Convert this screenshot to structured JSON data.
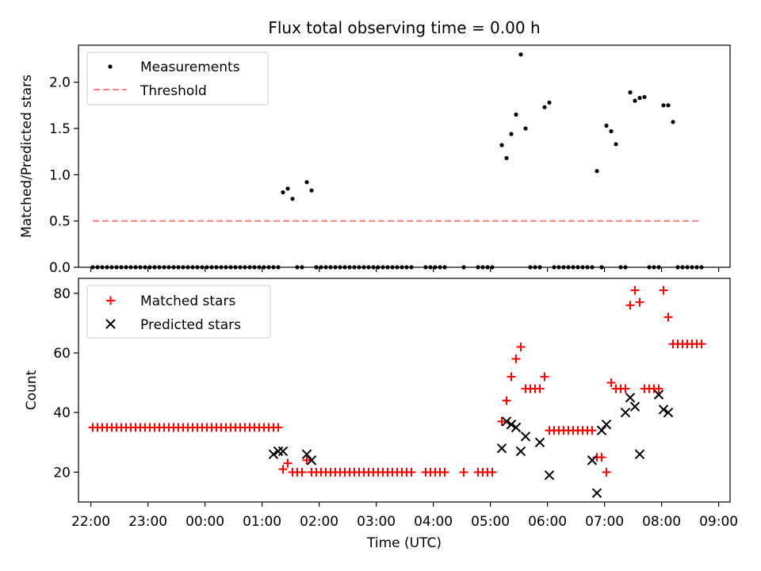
{
  "chart_data": [
    {
      "type": "scatter",
      "title": "Flux total observing time = 0.00 h",
      "ylabel": "Matched/Predicted stars",
      "xlabel": "",
      "ylim": [
        0,
        2.4
      ],
      "xlim": [
        "21:47",
        "09:12"
      ],
      "yticks": [
        "0.0",
        "0.5",
        "1.0",
        "1.5",
        "2.0"
      ],
      "legend_position": "top-left",
      "legend": [
        {
          "label": "Measurements",
          "marker": "dot",
          "color": "#000000"
        },
        {
          "label": "Threshold",
          "marker": "dashed-line",
          "color": "#ff7f7f"
        }
      ],
      "threshold": {
        "value": 0.5,
        "x_start": "22:02",
        "x_end": "08:42"
      },
      "series": [
        {
          "name": "Measurements",
          "x": [
            "22:02",
            "22:07",
            "22:12",
            "22:17",
            "22:22",
            "22:27",
            "22:32",
            "22:37",
            "22:42",
            "22:47",
            "22:52",
            "22:57",
            "23:02",
            "23:07",
            "23:12",
            "23:17",
            "23:22",
            "23:27",
            "23:32",
            "23:37",
            "23:42",
            "23:47",
            "23:52",
            "23:57",
            "00:02",
            "00:07",
            "00:12",
            "00:17",
            "00:22",
            "00:27",
            "00:32",
            "00:37",
            "00:42",
            "00:47",
            "00:52",
            "00:57",
            "01:02",
            "01:07",
            "01:12",
            "01:17",
            "01:22",
            "01:27",
            "01:32",
            "01:37",
            "01:42",
            "01:47",
            "01:52",
            "01:57",
            "02:02",
            "02:07",
            "02:12",
            "02:17",
            "02:22",
            "02:27",
            "02:32",
            "02:37",
            "02:42",
            "02:47",
            "02:52",
            "02:57",
            "03:02",
            "03:07",
            "03:12",
            "03:17",
            "03:22",
            "03:27",
            "03:32",
            "03:37",
            "03:52",
            "03:57",
            "04:02",
            "04:07",
            "04:12",
            "04:32",
            "04:47",
            "04:52",
            "04:57",
            "05:02",
            "05:12",
            "05:17",
            "05:22",
            "05:27",
            "05:32",
            "05:37",
            "05:42",
            "05:47",
            "05:52",
            "05:57",
            "06:02",
            "06:07",
            "06:12",
            "06:17",
            "06:22",
            "06:27",
            "06:32",
            "06:37",
            "06:42",
            "06:47",
            "06:52",
            "06:57",
            "07:02",
            "07:07",
            "07:12",
            "07:17",
            "07:22",
            "07:27",
            "07:32",
            "07:37",
            "07:42",
            "07:47",
            "07:52",
            "07:57",
            "08:02",
            "08:07",
            "08:12",
            "08:17",
            "08:22",
            "08:27",
            "08:32",
            "08:37",
            "08:42"
          ],
          "y": [
            0,
            0,
            0,
            0,
            0,
            0,
            0,
            0,
            0,
            0,
            0,
            0,
            0,
            0,
            0,
            0,
            0,
            0,
            0,
            0,
            0,
            0,
            0,
            0,
            0,
            0,
            0,
            0,
            0,
            0,
            0,
            0,
            0,
            0,
            0,
            0,
            0,
            0,
            0,
            0,
            0.81,
            0.85,
            0.74,
            0,
            0,
            0.92,
            0.83,
            0,
            0,
            0,
            0,
            0,
            0,
            0,
            0,
            0,
            0,
            0,
            0,
            0,
            0,
            0,
            0,
            0,
            0,
            0,
            0,
            0,
            0,
            0,
            0,
            0,
            0,
            0,
            0,
            0,
            0,
            0,
            1.32,
            1.18,
            1.44,
            1.65,
            2.3,
            1.5,
            0,
            0,
            0,
            1.73,
            1.78,
            0,
            0,
            0,
            0,
            0,
            0,
            0,
            0,
            0,
            1.04,
            0,
            1.53,
            1.47,
            1.33,
            0,
            0,
            1.89,
            1.8,
            1.83,
            1.84,
            0,
            0,
            0,
            1.75,
            1.75,
            1.57,
            0,
            0,
            0,
            0,
            0,
            0
          ]
        }
      ]
    },
    {
      "type": "scatter",
      "title": "",
      "ylabel": "Count",
      "xlabel": "Time (UTC)",
      "ylim": [
        10,
        85
      ],
      "xlim": [
        "21:47",
        "09:12"
      ],
      "yticks": [
        "20",
        "40",
        "60",
        "80"
      ],
      "xticks": [
        "22:00",
        "23:00",
        "00:00",
        "01:00",
        "02:00",
        "03:00",
        "04:00",
        "05:00",
        "06:00",
        "07:00",
        "08:00",
        "09:00"
      ],
      "legend_position": "top-left",
      "legend": [
        {
          "label": "Matched stars",
          "marker": "plus",
          "color": "#ff0000"
        },
        {
          "label": "Predicted stars",
          "marker": "x",
          "color": "#000000"
        }
      ],
      "series": [
        {
          "name": "Matched stars",
          "x": [
            "22:02",
            "22:07",
            "22:12",
            "22:17",
            "22:22",
            "22:27",
            "22:32",
            "22:37",
            "22:42",
            "22:47",
            "22:52",
            "22:57",
            "23:02",
            "23:07",
            "23:12",
            "23:17",
            "23:22",
            "23:27",
            "23:32",
            "23:37",
            "23:42",
            "23:47",
            "23:52",
            "23:57",
            "00:02",
            "00:07",
            "00:12",
            "00:17",
            "00:22",
            "00:27",
            "00:32",
            "00:37",
            "00:42",
            "00:47",
            "00:52",
            "00:57",
            "01:02",
            "01:07",
            "01:12",
            "01:17",
            "01:22",
            "01:27",
            "01:32",
            "01:37",
            "01:42",
            "01:47",
            "01:52",
            "01:57",
            "02:02",
            "02:07",
            "02:12",
            "02:17",
            "02:22",
            "02:27",
            "02:32",
            "02:37",
            "02:42",
            "02:47",
            "02:52",
            "02:57",
            "03:02",
            "03:07",
            "03:12",
            "03:17",
            "03:22",
            "03:27",
            "03:32",
            "03:37",
            "03:52",
            "03:57",
            "04:02",
            "04:07",
            "04:12",
            "04:32",
            "04:47",
            "04:52",
            "04:57",
            "05:02",
            "05:12",
            "05:17",
            "05:22",
            "05:27",
            "05:32",
            "05:37",
            "05:42",
            "05:47",
            "05:52",
            "05:57",
            "06:02",
            "06:07",
            "06:12",
            "06:17",
            "06:22",
            "06:27",
            "06:32",
            "06:37",
            "06:42",
            "06:47",
            "06:52",
            "06:57",
            "07:02",
            "07:07",
            "07:12",
            "07:17",
            "07:22",
            "07:27",
            "07:32",
            "07:37",
            "07:42",
            "07:47",
            "07:52",
            "07:57",
            "08:02",
            "08:07",
            "08:12",
            "08:17",
            "08:22",
            "08:27",
            "08:32",
            "08:37",
            "08:42"
          ],
          "y": [
            35,
            35,
            35,
            35,
            35,
            35,
            35,
            35,
            35,
            35,
            35,
            35,
            35,
            35,
            35,
            35,
            35,
            35,
            35,
            35,
            35,
            35,
            35,
            35,
            35,
            35,
            35,
            35,
            35,
            35,
            35,
            35,
            35,
            35,
            35,
            35,
            35,
            35,
            35,
            35,
            21,
            23,
            20,
            20,
            20,
            24,
            20,
            20,
            20,
            20,
            20,
            20,
            20,
            20,
            20,
            20,
            20,
            20,
            20,
            20,
            20,
            20,
            20,
            20,
            20,
            20,
            20,
            20,
            20,
            20,
            20,
            20,
            20,
            20,
            20,
            20,
            20,
            20,
            37,
            44,
            52,
            58,
            62,
            48,
            48,
            48,
            48,
            52,
            34,
            34,
            34,
            34,
            34,
            34,
            34,
            34,
            34,
            34,
            25,
            25,
            20,
            50,
            48,
            48,
            48,
            76,
            81,
            77,
            48,
            48,
            48,
            48,
            81,
            72,
            63,
            63,
            63,
            63,
            63,
            63,
            63
          ]
        },
        {
          "name": "Predicted stars",
          "x": [
            "01:12",
            "01:17",
            "01:22",
            "01:47",
            "01:52",
            "05:12",
            "05:17",
            "05:22",
            "05:27",
            "05:32",
            "05:37",
            "05:52",
            "06:02",
            "06:47",
            "06:52",
            "06:57",
            "07:02",
            "07:22",
            "07:27",
            "07:32",
            "07:37",
            "07:57",
            "08:02",
            "08:07"
          ],
          "y": [
            26,
            27,
            27,
            26,
            24,
            28,
            37,
            36,
            35,
            27,
            32,
            30,
            19,
            24,
            13,
            34,
            36,
            40,
            45,
            42,
            26,
            46,
            41,
            40
          ]
        }
      ]
    }
  ]
}
